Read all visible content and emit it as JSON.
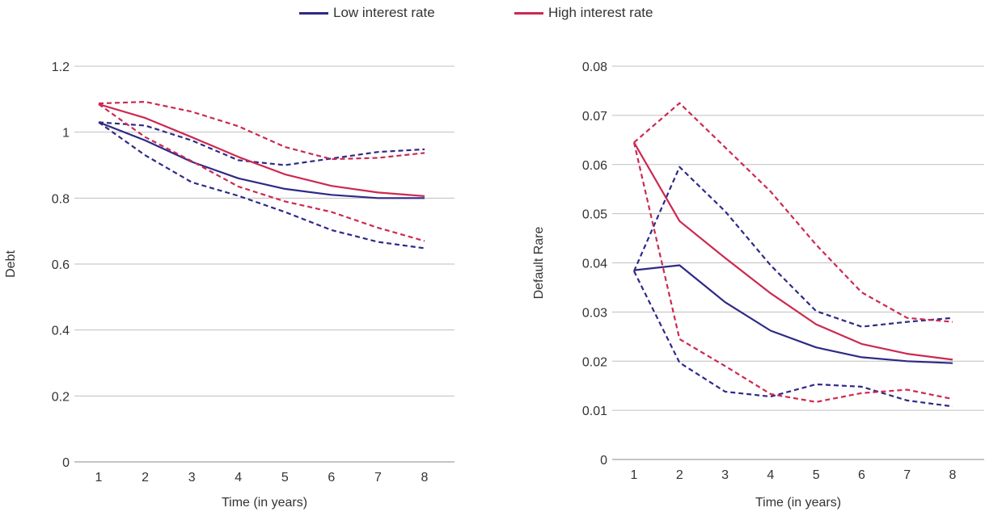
{
  "legend": {
    "low_label": "Low interest rate",
    "high_label": "High interest rate"
  },
  "colors": {
    "low": "#2e2a86",
    "high": "#cc2950",
    "grid": "#bfbfbf",
    "axis": "#888888"
  },
  "chart_data": [
    {
      "type": "line",
      "title": "",
      "xlabel": "Time (in years)",
      "ylabel": "Debt",
      "x": [
        1,
        2,
        3,
        4,
        5,
        6,
        7,
        8
      ],
      "xlim": [
        1,
        8
      ],
      "ylim": [
        0,
        1.2
      ],
      "yticks": [
        0,
        0.2,
        0.4,
        0.6,
        0.8,
        1,
        1.2
      ],
      "ytick_labels": [
        "0",
        "0.2",
        "0.4",
        "0.6",
        "0.8",
        "1",
        "1.2"
      ],
      "grid": true,
      "series": [
        {
          "name": "Low interest rate",
          "group": "low",
          "dash": false,
          "values": [
            1.03,
            0.975,
            0.91,
            0.86,
            0.828,
            0.81,
            0.8,
            0.8
          ]
        },
        {
          "group": "low",
          "dash": true,
          "values": [
            1.03,
            1.02,
            0.975,
            0.915,
            0.9,
            0.92,
            0.94,
            0.948
          ]
        },
        {
          "group": "low",
          "dash": true,
          "values": [
            1.03,
            0.93,
            0.848,
            0.807,
            0.758,
            0.703,
            0.667,
            0.648
          ]
        },
        {
          "name": "High interest rate",
          "group": "high",
          "dash": false,
          "values": [
            1.085,
            1.043,
            0.985,
            0.925,
            0.872,
            0.837,
            0.817,
            0.806
          ]
        },
        {
          "group": "high",
          "dash": true,
          "values": [
            1.087,
            1.092,
            1.062,
            1.018,
            0.955,
            0.918,
            0.922,
            0.937
          ]
        },
        {
          "group": "high",
          "dash": true,
          "values": [
            1.085,
            0.985,
            0.912,
            0.835,
            0.79,
            0.758,
            0.71,
            0.67
          ]
        }
      ]
    },
    {
      "type": "line",
      "title": "",
      "xlabel": "Time (in years)",
      "ylabel": "Default Rare",
      "x": [
        1,
        2,
        3,
        4,
        5,
        6,
        7,
        8
      ],
      "xlim": [
        1,
        8
      ],
      "ylim": [
        0,
        0.08
      ],
      "yticks": [
        0,
        0.01,
        0.02,
        0.03,
        0.04,
        0.05,
        0.06,
        0.07,
        0.08
      ],
      "ytick_labels": [
        "0",
        "0.01",
        "0.02",
        "0.03",
        "0.04",
        "0.05",
        "0.06",
        "0.07",
        "0.08"
      ],
      "grid": true,
      "series": [
        {
          "name": "Low interest rate",
          "group": "low",
          "dash": false,
          "values": [
            0.0385,
            0.0395,
            0.032,
            0.0262,
            0.0228,
            0.0208,
            0.02,
            0.0196
          ]
        },
        {
          "group": "low",
          "dash": true,
          "values": [
            0.0383,
            0.0595,
            0.0505,
            0.0395,
            0.0302,
            0.027,
            0.028,
            0.0288
          ]
        },
        {
          "group": "low",
          "dash": true,
          "values": [
            0.0383,
            0.0197,
            0.0138,
            0.0128,
            0.0153,
            0.0148,
            0.012,
            0.0108
          ]
        },
        {
          "name": "High interest rate",
          "group": "high",
          "dash": false,
          "values": [
            0.0645,
            0.0485,
            0.041,
            0.0338,
            0.0275,
            0.0235,
            0.0215,
            0.0203
          ]
        },
        {
          "group": "high",
          "dash": true,
          "values": [
            0.0645,
            0.0725,
            0.0635,
            0.0545,
            0.0437,
            0.034,
            0.0288,
            0.028
          ]
        },
        {
          "group": "high",
          "dash": true,
          "values": [
            0.0645,
            0.0245,
            0.019,
            0.0133,
            0.0117,
            0.0135,
            0.0142,
            0.0123
          ]
        }
      ]
    }
  ]
}
